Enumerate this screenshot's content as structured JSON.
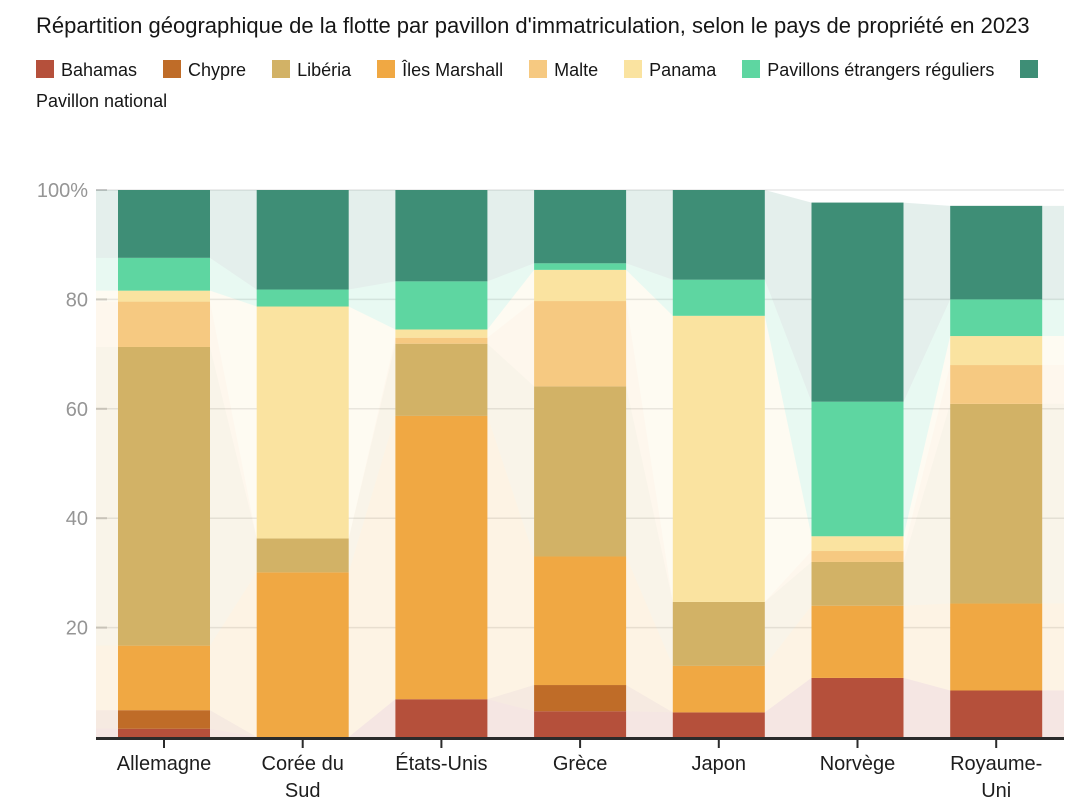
{
  "title": "Répartition géographique de la flotte par pavillon d'immatriculation, selon le pays de propriété en 2023",
  "legend": {
    "items": [
      {
        "label": "Bahamas",
        "color": "#b5503b"
      },
      {
        "label": "Chypre",
        "color": "#bf6c28"
      },
      {
        "label": "Libéria",
        "color": "#d2b266"
      },
      {
        "label": "Îles Marshall",
        "color": "#f0a843"
      },
      {
        "label": "Malte",
        "color": "#f6c981"
      },
      {
        "label": "Panama",
        "color": "#fae3a0"
      },
      {
        "label": "Pavillons étrangers réguliers",
        "color": "#5ed6a1"
      },
      {
        "label": "Pavillon national",
        "color": "#3e8e76"
      }
    ]
  },
  "chart_data": {
    "type": "bar",
    "subtype": "stacked-percent-column-with-flows",
    "title": "Répartition géographique de la flotte par pavillon d'immatriculation, selon le pays de propriété en 2023",
    "unit": "%",
    "categories": [
      "Allemagne",
      "Corée du Sud",
      "États-Unis",
      "Grèce",
      "Japon",
      "Norvège",
      "Royaume-Uni"
    ],
    "x_label_lines": [
      [
        "Allemagne"
      ],
      [
        "Corée du",
        "Sud"
      ],
      [
        "États-Unis"
      ],
      [
        "Grèce"
      ],
      [
        "Japon"
      ],
      [
        "Norvège"
      ],
      [
        "Royaume-",
        "Uni"
      ]
    ],
    "y_axis": {
      "ticks": [
        {
          "value": 100,
          "label": "100%"
        },
        {
          "value": 80,
          "label": "80"
        },
        {
          "value": 60,
          "label": "60"
        },
        {
          "value": 40,
          "label": "40"
        },
        {
          "value": 20,
          "label": "20"
        }
      ],
      "min": 0,
      "max": 100,
      "grid": true
    },
    "legend_position": "top",
    "stack_order_bottom_to_top": [
      "Bahamas",
      "Chypre",
      "Îles Marshall",
      "Libéria",
      "Malte",
      "Panama",
      "Pavillons étrangers réguliers",
      "Pavillon national"
    ],
    "series": [
      {
        "name": "Bahamas",
        "color": "#b5503b",
        "values": [
          1.5,
          0,
          6.9,
          4.7,
          4.5,
          10.8,
          8.5
        ]
      },
      {
        "name": "Chypre",
        "color": "#bf6c28",
        "values": [
          3.4,
          0,
          0,
          4.8,
          0,
          0,
          0
        ]
      },
      {
        "name": "Îles Marshall",
        "color": "#f0a843",
        "values": [
          11.8,
          30.1,
          51.8,
          23.5,
          8.5,
          13.2,
          15.9
        ]
      },
      {
        "name": "Libéria",
        "color": "#d2b266",
        "values": [
          54.6,
          6.2,
          13.2,
          31.1,
          11.7,
          8,
          36.5
        ]
      },
      {
        "name": "Malte",
        "color": "#f6c981",
        "values": [
          8.3,
          0,
          1.1,
          15.6,
          0,
          2,
          7.1
        ]
      },
      {
        "name": "Panama",
        "color": "#fae3a0",
        "values": [
          2,
          42.4,
          1.5,
          5.7,
          52.3,
          2.7,
          5.3
        ]
      },
      {
        "name": "Pavillons étrangers réguliers",
        "color": "#5ed6a1",
        "values": [
          6,
          3.1,
          8.8,
          1.2,
          6.6,
          24.6,
          6.7
        ]
      },
      {
        "name": "Pavillon national",
        "color": "#3e8e76",
        "values": [
          12.4,
          18.2,
          16.7,
          13.4,
          16.4,
          36.4,
          17.1
        ]
      }
    ],
    "column_totals": [
      100,
      100,
      100,
      100,
      100,
      97.7,
      97.1
    ]
  }
}
